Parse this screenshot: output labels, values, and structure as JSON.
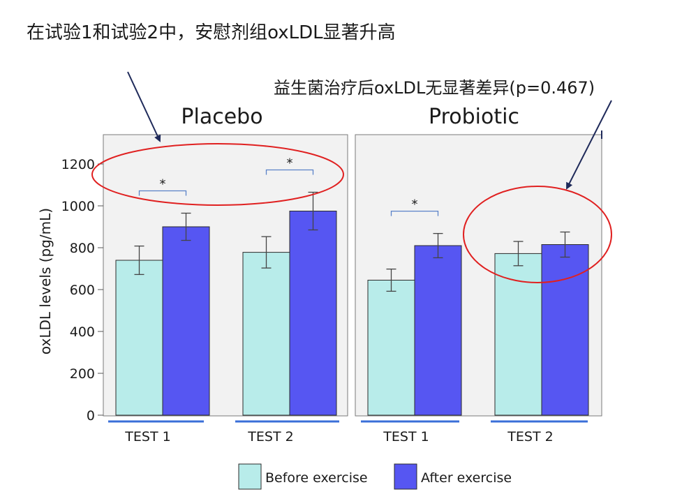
{
  "annotations": {
    "top_left": "在试验1和试验2中，安慰剂组oxLDL显著升高",
    "top_right": "益生菌治疗后oxLDL无显著差异(p=0.467)"
  },
  "colors": {
    "before": "#b8ecea",
    "after": "#5656f2",
    "panel_bg": "#f2f2f2",
    "axis_rule": "#3a6fd8",
    "bracket": "#5a82c8",
    "annotation_ellipse": "#e02020",
    "arrow": "#1f2a5a"
  },
  "chart_data": {
    "type": "bar",
    "ylabel": "oxLDL levels (pg/mL)",
    "ylim": [
      0,
      1300
    ],
    "yticks": [
      0,
      200,
      400,
      600,
      800,
      1000,
      1200
    ],
    "panels": [
      {
        "title": "Placebo",
        "categories": [
          "TEST 1",
          "TEST 2"
        ],
        "series": [
          {
            "name": "Before exercise",
            "values": [
              740,
              778
            ],
            "errors": [
              68,
              75
            ]
          },
          {
            "name": "After exercise",
            "values": [
              900,
              975
            ],
            "errors": [
              65,
              90
            ]
          }
        ],
        "significance": [
          {
            "category": "TEST 1",
            "label": "*"
          },
          {
            "category": "TEST 2",
            "label": "*"
          }
        ]
      },
      {
        "title": "Probiotic",
        "categories": [
          "TEST 1",
          "TEST 2"
        ],
        "series": [
          {
            "name": "Before exercise",
            "values": [
              645,
              772
            ],
            "errors": [
              53,
              58
            ]
          },
          {
            "name": "After exercise",
            "values": [
              810,
              815
            ],
            "errors": [
              58,
              60
            ]
          }
        ],
        "significance": [
          {
            "category": "TEST 1",
            "label": "*"
          }
        ]
      }
    ],
    "legend": {
      "items": [
        "Before exercise",
        "After exercise"
      ],
      "position": "bottom"
    },
    "grid": false
  }
}
